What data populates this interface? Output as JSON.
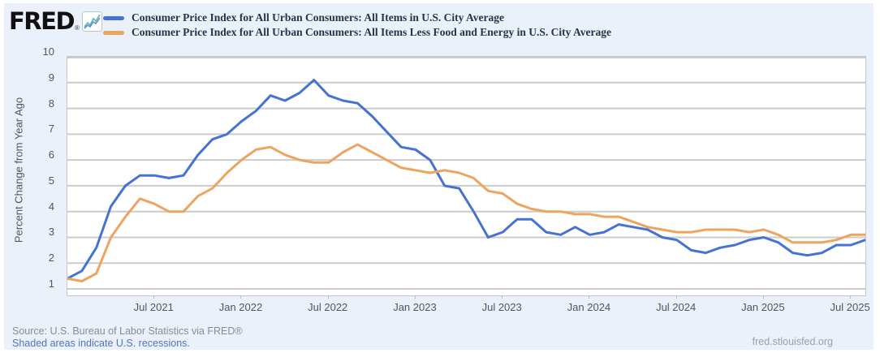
{
  "header": {
    "logo_text": "FRED",
    "logo_registered": "®",
    "legend": [
      {
        "label": "Consumer Price Index for All Urban Consumers: All Items in U.S. City Average",
        "color": "#4673d2"
      },
      {
        "label": "Consumer Price Index for All Urban Consumers: All Items Less Food and Energy in U.S. City Average",
        "color": "#eda45f"
      }
    ]
  },
  "chart_data": {
    "type": "line",
    "ylabel": "Percent Change from Year Ago",
    "ylim": [
      0.75,
      10
    ],
    "y_ticks": [
      1,
      2,
      3,
      4,
      5,
      6,
      7,
      8,
      9,
      10
    ],
    "frequency": "Monthly",
    "x_start": "Jan 2021",
    "x_end": "Aug 2025",
    "x_point_count": 56,
    "x_ticks": [
      {
        "index": 6,
        "label": "Jul 2021"
      },
      {
        "index": 12,
        "label": "Jan 2022"
      },
      {
        "index": 18,
        "label": "Jul 2022"
      },
      {
        "index": 24,
        "label": "Jan 2023"
      },
      {
        "index": 30,
        "label": "Jul 2023"
      },
      {
        "index": 36,
        "label": "Jan 2024"
      },
      {
        "index": 42,
        "label": "Jul 2024"
      },
      {
        "index": 48,
        "label": "Jan 2025"
      },
      {
        "index": 54,
        "label": "Jul 2025"
      }
    ],
    "grid": "horizontal",
    "legend_position": "top-left",
    "line_width": 3,
    "series": [
      {
        "name": "Consumer Price Index for All Urban Consumers: All Items in U.S. City Average",
        "color": "#4673d2",
        "values": [
          1.4,
          1.7,
          2.6,
          4.2,
          5.0,
          5.4,
          5.4,
          5.3,
          5.4,
          6.2,
          6.8,
          7.0,
          7.5,
          7.9,
          8.5,
          8.3,
          8.6,
          9.1,
          8.5,
          8.3,
          8.2,
          7.7,
          7.1,
          6.5,
          6.4,
          6.0,
          5.0,
          4.9,
          4.0,
          3.0,
          3.2,
          3.7,
          3.7,
          3.2,
          3.1,
          3.4,
          3.1,
          3.2,
          3.5,
          3.4,
          3.3,
          3.0,
          2.9,
          2.5,
          2.4,
          2.6,
          2.7,
          2.9,
          3.0,
          2.8,
          2.4,
          2.3,
          2.4,
          2.7,
          2.7,
          2.9
        ]
      },
      {
        "name": "Consumer Price Index for All Urban Consumers: All Items Less Food and Energy in U.S. City Average",
        "color": "#eda45f",
        "values": [
          1.4,
          1.3,
          1.6,
          3.0,
          3.8,
          4.5,
          4.3,
          4.0,
          4.0,
          4.6,
          4.9,
          5.5,
          6.0,
          6.4,
          6.5,
          6.2,
          6.0,
          5.9,
          5.9,
          6.3,
          6.6,
          6.3,
          6.0,
          5.7,
          5.6,
          5.5,
          5.6,
          5.5,
          5.3,
          4.8,
          4.7,
          4.3,
          4.1,
          4.0,
          4.0,
          3.9,
          3.9,
          3.8,
          3.8,
          3.6,
          3.4,
          3.3,
          3.2,
          3.2,
          3.3,
          3.3,
          3.3,
          3.2,
          3.3,
          3.1,
          2.8,
          2.8,
          2.8,
          2.9,
          3.1,
          3.1
        ]
      }
    ],
    "colors": {
      "grid": "#cccccc",
      "plot_border": "#c6c6c6",
      "background": "#eaf1fa"
    }
  },
  "footer": {
    "source": "Source: U.S. Bureau of Labor Statistics via FRED®",
    "recessions_note": "Shaded areas indicate U.S. recessions.",
    "site": "fred.stlouisfed.org"
  }
}
